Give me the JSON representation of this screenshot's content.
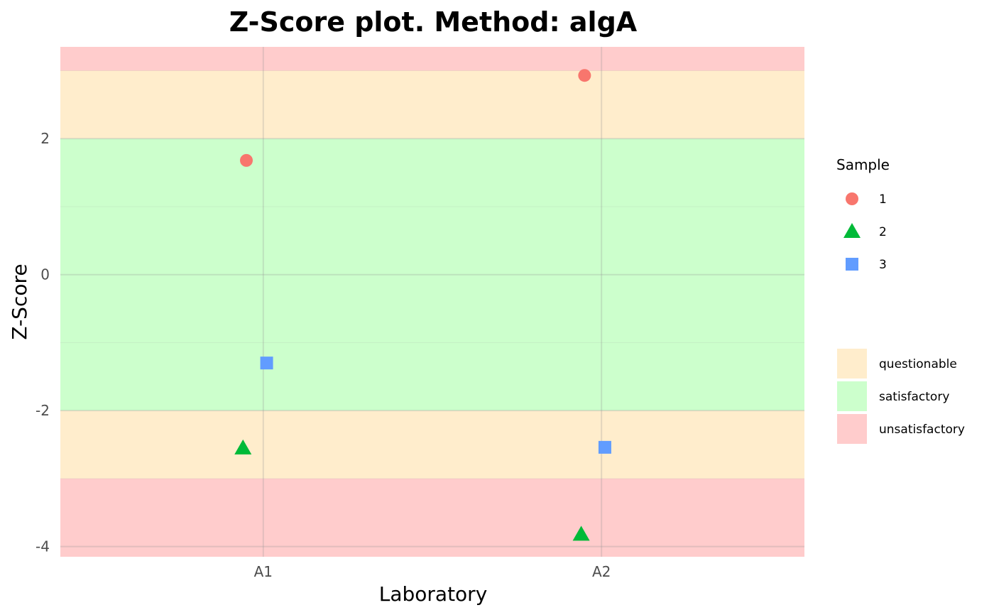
{
  "chart_data": {
    "type": "scatter",
    "title": "Z-Score plot. Method: algA",
    "xlabel": "Laboratory",
    "ylabel": "Z-Score",
    "categories": [
      "A1",
      "A2"
    ],
    "ylim": [
      -4.15,
      3.35
    ],
    "yticks": [
      -4,
      -2,
      0,
      2
    ],
    "ytick_labels": [
      "-4",
      "-2",
      "0",
      "2"
    ],
    "series": [
      {
        "name": "1",
        "shape": "circle",
        "color": "#F8766D",
        "points": [
          {
            "x": "A1",
            "y": 1.68
          },
          {
            "x": "A2",
            "y": 2.93
          }
        ]
      },
      {
        "name": "2",
        "shape": "triangle",
        "color": "#00BA38",
        "points": [
          {
            "x": "A1",
            "y": -2.55
          },
          {
            "x": "A2",
            "y": -3.82
          }
        ]
      },
      {
        "name": "3",
        "shape": "square",
        "color": "#619CFF",
        "points": [
          {
            "x": "A1",
            "y": -1.3
          },
          {
            "x": "A2",
            "y": -2.54
          }
        ]
      }
    ],
    "bands": [
      {
        "label": "unsatisfactory",
        "from": 3,
        "to": 3.35,
        "color": "#FFCCCC"
      },
      {
        "label": "questionable",
        "from": 2,
        "to": 3,
        "color": "#FFEDCC"
      },
      {
        "label": "satisfactory",
        "from": -2,
        "to": 2,
        "color": "#CCFFCC"
      },
      {
        "label": "questionable",
        "from": -3,
        "to": -2,
        "color": "#FFEDCC"
      },
      {
        "label": "unsatisfactory",
        "from": -4.15,
        "to": -3,
        "color": "#FFCCCC"
      }
    ],
    "legend_title": "Sample",
    "legend_placement": "right",
    "fill_legend": [
      {
        "label": "questionable",
        "color": "#FFEDCC"
      },
      {
        "label": "satisfactory",
        "color": "#CCFFCC"
      },
      {
        "label": "unsatisfactory",
        "color": "#FFCCCC"
      }
    ],
    "grid": true
  }
}
